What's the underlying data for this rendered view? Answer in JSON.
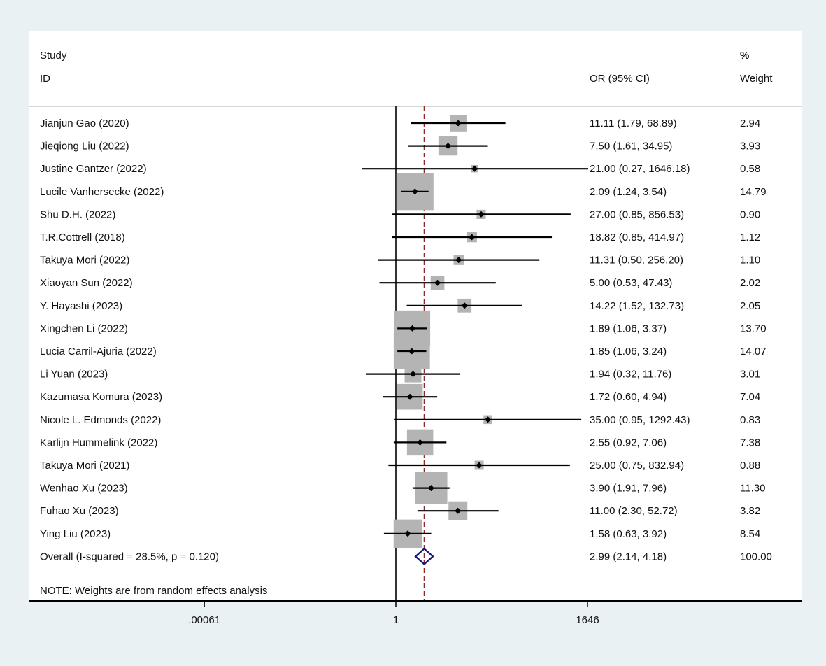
{
  "chart_data": {
    "type": "forest",
    "header": {
      "study_line1": "Study",
      "study_line2": "ID",
      "or_label": "OR (95% CI)",
      "weight_line1": "%",
      "weight_line2": "Weight"
    },
    "x_scale": "log",
    "x_ticks": [
      {
        "value": 0.00061,
        "label": ".00061"
      },
      {
        "value": 1,
        "label": "1"
      },
      {
        "value": 1646,
        "label": "1646"
      }
    ],
    "null_line_value": 1,
    "studies": [
      {
        "name": "Jianjun Gao (2020)",
        "or": 11.11,
        "lo": 1.79,
        "hi": 68.89,
        "text": "11.11 (1.79, 68.89)",
        "weight": 2.94,
        "weight_text": "2.94"
      },
      {
        "name": "Jieqiong Liu (2022)",
        "or": 7.5,
        "lo": 1.61,
        "hi": 34.95,
        "text": "7.50 (1.61, 34.95)",
        "weight": 3.93,
        "weight_text": "3.93"
      },
      {
        "name": "Justine Gantzer (2022)",
        "or": 21.0,
        "lo": 0.27,
        "hi": 1646.18,
        "text": "21.00 (0.27, 1646.18)",
        "weight": 0.58,
        "weight_text": "0.58"
      },
      {
        "name": "Lucile Vanhersecke (2022)",
        "or": 2.09,
        "lo": 1.24,
        "hi": 3.54,
        "text": "2.09 (1.24, 3.54)",
        "weight": 14.79,
        "weight_text": "14.79"
      },
      {
        "name": "Shu D.H. (2022)",
        "or": 27.0,
        "lo": 0.85,
        "hi": 856.53,
        "text": "27.00 (0.85, 856.53)",
        "weight": 0.9,
        "weight_text": "0.90"
      },
      {
        "name": "T.R.Cottrell (2018)",
        "or": 18.82,
        "lo": 0.85,
        "hi": 414.97,
        "text": "18.82 (0.85, 414.97)",
        "weight": 1.12,
        "weight_text": "1.12"
      },
      {
        "name": "Takuya Mori  (2022)",
        "or": 11.31,
        "lo": 0.5,
        "hi": 256.2,
        "text": "11.31 (0.50, 256.20)",
        "weight": 1.1,
        "weight_text": "1.10"
      },
      {
        "name": "Xiaoyan Sun (2022)",
        "or": 5.0,
        "lo": 0.53,
        "hi": 47.43,
        "text": "5.00 (0.53, 47.43)",
        "weight": 2.02,
        "weight_text": "2.02"
      },
      {
        "name": "Y. Hayashi (2023)",
        "or": 14.22,
        "lo": 1.52,
        "hi": 132.73,
        "text": "14.22 (1.52, 132.73)",
        "weight": 2.05,
        "weight_text": "2.05"
      },
      {
        "name": "Xingchen Li  (2022)",
        "or": 1.89,
        "lo": 1.06,
        "hi": 3.37,
        "text": "1.89 (1.06, 3.37)",
        "weight": 13.7,
        "weight_text": "13.70"
      },
      {
        "name": "Lucia Carril-Ajuria (2022)",
        "or": 1.85,
        "lo": 1.06,
        "hi": 3.24,
        "text": "1.85 (1.06, 3.24)",
        "weight": 14.07,
        "weight_text": "14.07"
      },
      {
        "name": "Li Yuan  (2023)",
        "or": 1.94,
        "lo": 0.32,
        "hi": 11.76,
        "text": "1.94 (0.32, 11.76)",
        "weight": 3.01,
        "weight_text": "3.01"
      },
      {
        "name": "Kazumasa Komura (2023)",
        "or": 1.72,
        "lo": 0.6,
        "hi": 4.94,
        "text": "1.72 (0.60, 4.94)",
        "weight": 7.04,
        "weight_text": "7.04"
      },
      {
        "name": "Nicole L. Edmonds (2022)",
        "or": 35.0,
        "lo": 0.95,
        "hi": 1292.43,
        "text": "35.00 (0.95, 1292.43)",
        "weight": 0.83,
        "weight_text": "0.83"
      },
      {
        "name": "Karlijn Hummelink (2022)",
        "or": 2.55,
        "lo": 0.92,
        "hi": 7.06,
        "text": "2.55 (0.92, 7.06)",
        "weight": 7.38,
        "weight_text": "7.38"
      },
      {
        "name": "Takuya Mori (2021)",
        "or": 25.0,
        "lo": 0.75,
        "hi": 832.94,
        "text": "25.00 (0.75, 832.94)",
        "weight": 0.88,
        "weight_text": "0.88"
      },
      {
        "name": "Wenhao Xu (2023)",
        "or": 3.9,
        "lo": 1.91,
        "hi": 7.96,
        "text": "3.90 (1.91, 7.96)",
        "weight": 11.3,
        "weight_text": "11.30"
      },
      {
        "name": "Fuhao Xu (2023)",
        "or": 11.0,
        "lo": 2.3,
        "hi": 52.72,
        "text": "11.00 (2.30, 52.72)",
        "weight": 3.82,
        "weight_text": "3.82"
      },
      {
        "name": "Ying Liu (2023)",
        "or": 1.58,
        "lo": 0.63,
        "hi": 3.92,
        "text": "1.58 (0.63, 3.92)",
        "weight": 8.54,
        "weight_text": "8.54"
      }
    ],
    "overall": {
      "name": "Overall  (I-squared = 28.5%, p = 0.120)",
      "or": 2.99,
      "lo": 2.14,
      "hi": 4.18,
      "text": "2.99 (2.14, 4.18)",
      "weight_text": "100.00"
    },
    "note": "NOTE: Weights are from random effects analysis",
    "colors": {
      "page_bg": "#e9f1f3",
      "panel_bg": "#ffffff",
      "box": "#b4b4b4",
      "marker": "#000000",
      "overall_diamond": "#1a1a7a",
      "pooled_line": "#8b2a2a",
      "axis": "#000000"
    }
  }
}
